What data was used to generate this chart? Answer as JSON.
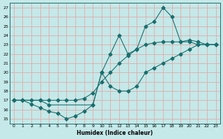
{
  "xlabel": "Humidex (Indice chaleur)",
  "bg_color": "#c5e8e8",
  "grid_color": "#e0aaaa",
  "line_color": "#1a6e6e",
  "xlim": [
    -0.5,
    23.5
  ],
  "ylim": [
    14.5,
    27.5
  ],
  "xticks": [
    0,
    1,
    2,
    3,
    4,
    5,
    6,
    7,
    8,
    9,
    10,
    11,
    12,
    13,
    14,
    15,
    16,
    17,
    18,
    19,
    20,
    21,
    22,
    23
  ],
  "yticks": [
    15,
    16,
    17,
    18,
    19,
    20,
    21,
    22,
    23,
    24,
    25,
    26,
    27
  ],
  "curve_bottom_x": [
    0,
    1,
    2,
    3,
    4,
    5,
    6,
    7,
    8,
    9,
    10,
    11,
    12,
    13,
    14,
    15,
    16,
    17,
    18,
    19,
    20,
    21,
    22,
    23
  ],
  "curve_bottom_y": [
    17.0,
    17.0,
    16.6,
    16.2,
    15.8,
    15.6,
    15.0,
    15.3,
    15.8,
    16.5,
    20.0,
    18.5,
    18.0,
    18.0,
    18.5,
    20.0,
    20.5,
    21.0,
    21.5,
    22.0,
    22.5,
    23.0,
    23.0,
    23.0
  ],
  "curve_mid_x": [
    0,
    1,
    2,
    3,
    4,
    5,
    6,
    7,
    8,
    9,
    10,
    11,
    12,
    13,
    14,
    15,
    16,
    17,
    18,
    19,
    20,
    21,
    22,
    23
  ],
  "curve_mid_y": [
    17.0,
    17.0,
    17.0,
    17.0,
    17.0,
    17.0,
    17.0,
    17.0,
    17.2,
    17.8,
    19.0,
    20.0,
    21.0,
    21.8,
    22.5,
    23.0,
    23.2,
    23.3,
    23.3,
    23.3,
    23.3,
    23.0,
    23.0,
    23.0
  ],
  "curve_top_x": [
    0,
    1,
    3,
    4,
    9,
    10,
    11,
    12,
    13,
    14,
    15,
    16,
    17,
    18,
    19,
    20,
    21,
    22,
    23
  ],
  "curve_top_y": [
    17.0,
    17.0,
    17.0,
    16.5,
    16.5,
    20.0,
    22.0,
    24.0,
    22.0,
    22.5,
    25.0,
    25.5,
    27.0,
    26.0,
    23.3,
    23.5,
    23.3,
    23.0,
    23.0
  ]
}
